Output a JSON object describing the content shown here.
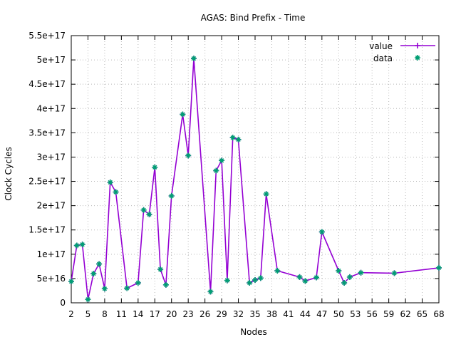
{
  "chart_data": {
    "type": "line",
    "title": "AGAS: Bind Prefix - Time",
    "xlabel": "Nodes",
    "ylabel": "Clock Cycles",
    "xlim": [
      2,
      68
    ],
    "ylim": [
      0,
      5.5e+17
    ],
    "grid": true,
    "legend_position": "top-right",
    "x_ticks": [
      "2",
      "5",
      "8",
      "11",
      "14",
      "17",
      "20",
      "23",
      "26",
      "29",
      "32",
      "35",
      "38",
      "41",
      "44",
      "47",
      "50",
      "53",
      "56",
      "59",
      "62",
      "65",
      "68"
    ],
    "y_ticks": [
      {
        "value": 0,
        "label": "0"
      },
      {
        "value": 5e+16,
        "label": "5e+16"
      },
      {
        "value": 1e+17,
        "label": "1e+17"
      },
      {
        "value": 1.5e+17,
        "label": "1.5e+17"
      },
      {
        "value": 2e+17,
        "label": "2e+17"
      },
      {
        "value": 2.5e+17,
        "label": "2.5e+17"
      },
      {
        "value": 3e+17,
        "label": "3e+17"
      },
      {
        "value": 3.5e+17,
        "label": "3.5e+17"
      },
      {
        "value": 4e+17,
        "label": "4e+17"
      },
      {
        "value": 4.5e+17,
        "label": "4.5e+17"
      },
      {
        "value": 5e+17,
        "label": "5e+17"
      },
      {
        "value": 5.5e+17,
        "label": "5.5e+17"
      }
    ],
    "series": [
      {
        "name": "value",
        "style": "line+cross",
        "color": "#9400d3",
        "x": [
          2,
          3,
          4,
          5,
          6,
          7,
          8,
          9,
          10,
          12,
          14,
          15,
          16,
          17,
          18,
          19,
          20,
          22,
          23,
          24,
          27,
          28,
          29,
          30,
          31,
          32,
          34,
          35,
          36,
          37,
          39,
          43,
          44,
          46,
          47,
          50,
          51,
          52,
          54,
          60,
          68
        ],
        "y": [
          4.4e+16,
          1.18e+17,
          1.2e+17,
          7000000000000000.0,
          6e+16,
          8e+16,
          2.9e+16,
          2.48e+17,
          2.28e+17,
          3e+16,
          4.1e+16,
          1.91e+17,
          1.82e+17,
          2.79e+17,
          6.9e+16,
          3.7e+16,
          2.2e+17,
          3.88e+17,
          3.03e+17,
          5.03e+17,
          2.3e+16,
          2.72e+17,
          2.93e+17,
          4.6e+16,
          3.4e+17,
          3.36e+17,
          4.1e+16,
          4.7e+16,
          5.1e+16,
          2.24e+17,
          6.6e+16,
          5.3e+16,
          4.5e+16,
          5.2e+16,
          1.46e+17,
          6.6e+16,
          4.1e+16,
          5.3e+16,
          6.2e+16,
          6.1e+16,
          7.2e+16
        ]
      },
      {
        "name": "data",
        "style": "points",
        "color": "#009e73",
        "same_as": "value"
      }
    ]
  }
}
